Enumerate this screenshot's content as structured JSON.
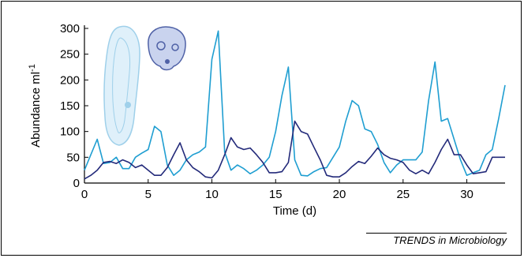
{
  "source_label": "TRENDS in Microbiology",
  "colors": {
    "prey": "#1f9ed1",
    "predator": "#232a7a",
    "prey_illustration": "#9fd0ea",
    "predator_illustration": "#4f61a6"
  },
  "illustrations": [
    "paramecium-icon",
    "didinium-icon"
  ],
  "chart_data": {
    "type": "line",
    "title": "",
    "xlabel": "Time (d)",
    "ylabel": "Abundance ml",
    "ylabel_superscript": "-1",
    "xlim": [
      0,
      33
    ],
    "ylim": [
      0,
      300
    ],
    "x_ticks": [
      0,
      5,
      10,
      15,
      20,
      25,
      30
    ],
    "y_ticks": [
      0,
      50,
      100,
      150,
      200,
      250,
      300
    ],
    "grid": false,
    "legend": "none",
    "series": [
      {
        "x": [
          0,
          0.5,
          1,
          1.5,
          2,
          2.5,
          3,
          3.5,
          4,
          4.5,
          5,
          5.5,
          6,
          6.5,
          7,
          7.5,
          8,
          8.5,
          9,
          9.5,
          10,
          10.5,
          11,
          11.5,
          12,
          12.5,
          13,
          13.5,
          14,
          14.5,
          15,
          15.5,
          16,
          16.5,
          17,
          17.5,
          18,
          18.5,
          19,
          19.5,
          20,
          20.5,
          21,
          21.5,
          22,
          22.5,
          23,
          23.5,
          24,
          24.5,
          25,
          25.5,
          26,
          26.5,
          27,
          27.5,
          28,
          28.5,
          29,
          29.5,
          30,
          30.5,
          31,
          31.5,
          32,
          32.5,
          33
        ],
        "values": [
          25,
          55,
          85,
          38,
          40,
          50,
          28,
          28,
          50,
          58,
          65,
          110,
          100,
          35,
          15,
          25,
          45,
          55,
          60,
          70,
          240,
          295,
          60,
          25,
          35,
          28,
          18,
          25,
          35,
          50,
          100,
          170,
          225,
          45,
          15,
          14,
          22,
          28,
          30,
          50,
          70,
          120,
          160,
          150,
          105,
          100,
          75,
          40,
          20,
          35,
          45,
          45,
          45,
          60,
          160,
          235,
          120,
          125,
          85,
          45,
          15,
          20,
          25,
          55,
          65,
          125,
          190
        ]
      },
      {
        "x": [
          0,
          0.5,
          1,
          1.5,
          2,
          2.5,
          3,
          3.5,
          4,
          4.5,
          5,
          5.5,
          6,
          6.5,
          7,
          7.5,
          8,
          8.5,
          9,
          9.5,
          10,
          10.5,
          11,
          11.5,
          12,
          12.5,
          13,
          13.5,
          14,
          14.5,
          15,
          15.5,
          16,
          16.5,
          17,
          17.5,
          18,
          18.5,
          19,
          19.5,
          20,
          20.5,
          21,
          21.5,
          22,
          22.5,
          23,
          23.5,
          24,
          24.5,
          25,
          25.5,
          26,
          26.5,
          27,
          27.5,
          28,
          28.5,
          29,
          29.5,
          30,
          30.5,
          31,
          31.5,
          32,
          32.5,
          33
        ],
        "values": [
          8,
          15,
          25,
          40,
          42,
          38,
          45,
          40,
          30,
          35,
          25,
          15,
          15,
          30,
          55,
          78,
          45,
          30,
          22,
          12,
          10,
          25,
          55,
          88,
          70,
          65,
          68,
          55,
          40,
          20,
          20,
          22,
          40,
          120,
          100,
          95,
          70,
          45,
          15,
          12,
          12,
          20,
          32,
          42,
          38,
          52,
          68,
          55,
          48,
          45,
          40,
          25,
          18,
          25,
          18,
          40,
          65,
          85,
          55,
          55,
          35,
          18,
          20,
          22,
          50,
          50,
          50
        ]
      }
    ]
  }
}
